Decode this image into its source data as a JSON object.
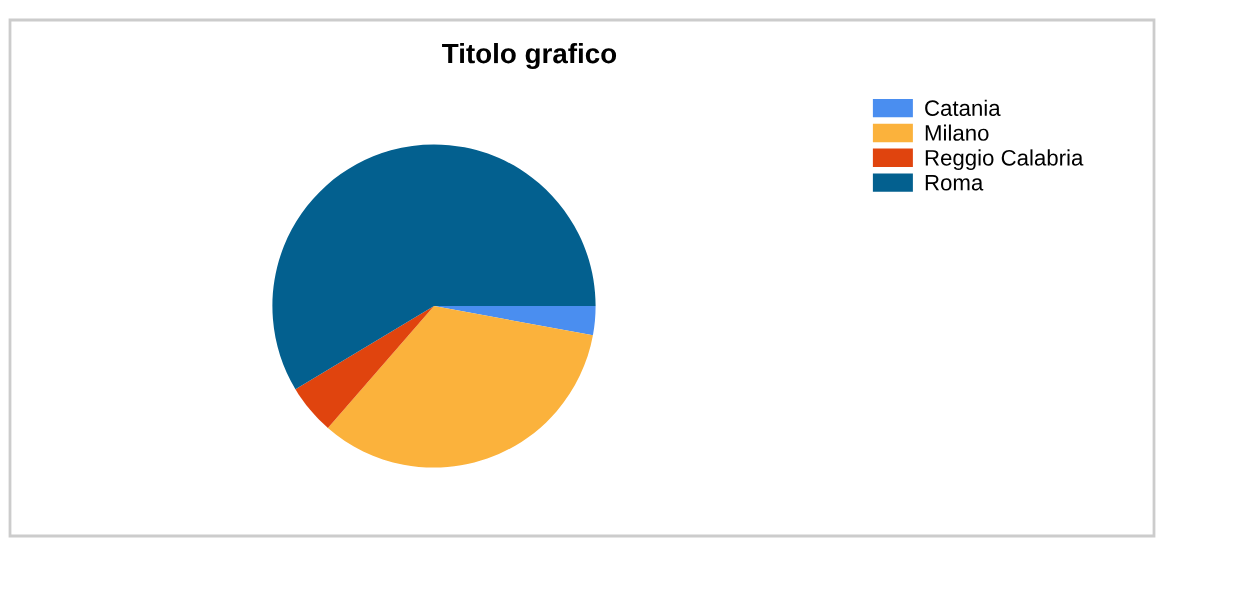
{
  "chart_data": {
    "type": "pie",
    "title": "Titolo grafico",
    "categories": [
      "Catania",
      "Milano",
      "Reggio Calabria",
      "Roma"
    ],
    "values": [
      2.9,
      33.5,
      5.0,
      58.6
    ],
    "colors": [
      "#4a8ef0",
      "#fbb23c",
      "#e0440e",
      "#03608f"
    ],
    "legend": "top right"
  }
}
